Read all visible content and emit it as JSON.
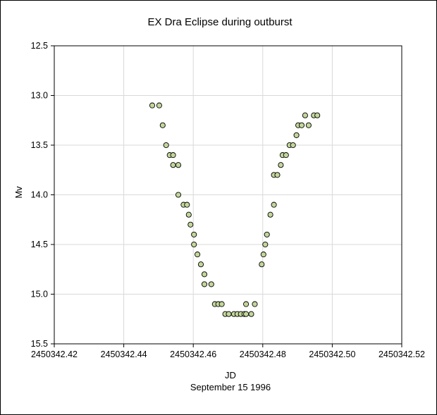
{
  "chart_data": {
    "type": "scatter",
    "title": "EX Dra  Eclipse during  outburst",
    "xlabel": "JD",
    "xlabel_sub": "September  15 1996",
    "ylabel": "Mv",
    "xlim": [
      2450342.42,
      2450342.52
    ],
    "ylim": [
      12.5,
      15.5
    ],
    "y_inverted": true,
    "grid": true,
    "x_ticks": [
      "2450342.42",
      "2450342.44",
      "2450342.46",
      "2450342.48",
      "2450342.50",
      "2450342.52"
    ],
    "x_tick_values": [
      2450342.42,
      2450342.44,
      2450342.46,
      2450342.48,
      2450342.5,
      2450342.52
    ],
    "y_ticks": [
      "12.5",
      "13.0",
      "13.5",
      "14.0",
      "14.5",
      "15.0",
      "15.5"
    ],
    "y_tick_values": [
      12.5,
      13.0,
      13.5,
      14.0,
      14.5,
      15.0,
      15.5
    ],
    "marker_color": "#c3d69b",
    "marker_edge": "#000000",
    "x": [
      2450342.4482,
      2450342.4502,
      2450342.4512,
      2450342.4522,
      2450342.4532,
      2450342.4542,
      2450342.4542,
      2450342.4557,
      2450342.4557,
      2450342.4572,
      2450342.4582,
      2450342.4587,
      2450342.4592,
      2450342.4602,
      2450342.4602,
      2450342.4612,
      2450342.4622,
      2450342.4632,
      2450342.4632,
      2450342.4652,
      2450342.4662,
      2450342.4672,
      2450342.4682,
      2450342.4692,
      2450342.4702,
      2450342.4717,
      2450342.4727,
      2450342.4737,
      2450342.4747,
      2450342.4752,
      2450342.4752,
      2450342.4767,
      2450342.4777,
      2450342.4797,
      2450342.4802,
      2450342.4807,
      2450342.4812,
      2450342.4822,
      2450342.4832,
      2450342.4832,
      2450342.4842,
      2450342.4852,
      2450342.4857,
      2450342.4867,
      2450342.4877,
      2450342.4887,
      2450342.4897,
      2450342.4902,
      2450342.4912,
      2450342.4922,
      2450342.4932,
      2450342.4947,
      2450342.4957
    ],
    "y": [
      13.1,
      13.1,
      13.3,
      13.5,
      13.6,
      13.6,
      13.7,
      13.7,
      14.0,
      14.1,
      14.1,
      14.2,
      14.3,
      14.4,
      14.5,
      14.6,
      14.7,
      14.8,
      14.9,
      14.9,
      15.1,
      15.1,
      15.1,
      15.2,
      15.2,
      15.2,
      15.2,
      15.2,
      15.2,
      15.1,
      15.2,
      15.2,
      15.1,
      14.7,
      14.6,
      14.5,
      14.4,
      14.2,
      14.1,
      13.8,
      13.8,
      13.7,
      13.6,
      13.6,
      13.5,
      13.5,
      13.4,
      13.3,
      13.3,
      13.2,
      13.3,
      13.2,
      13.2
    ]
  }
}
